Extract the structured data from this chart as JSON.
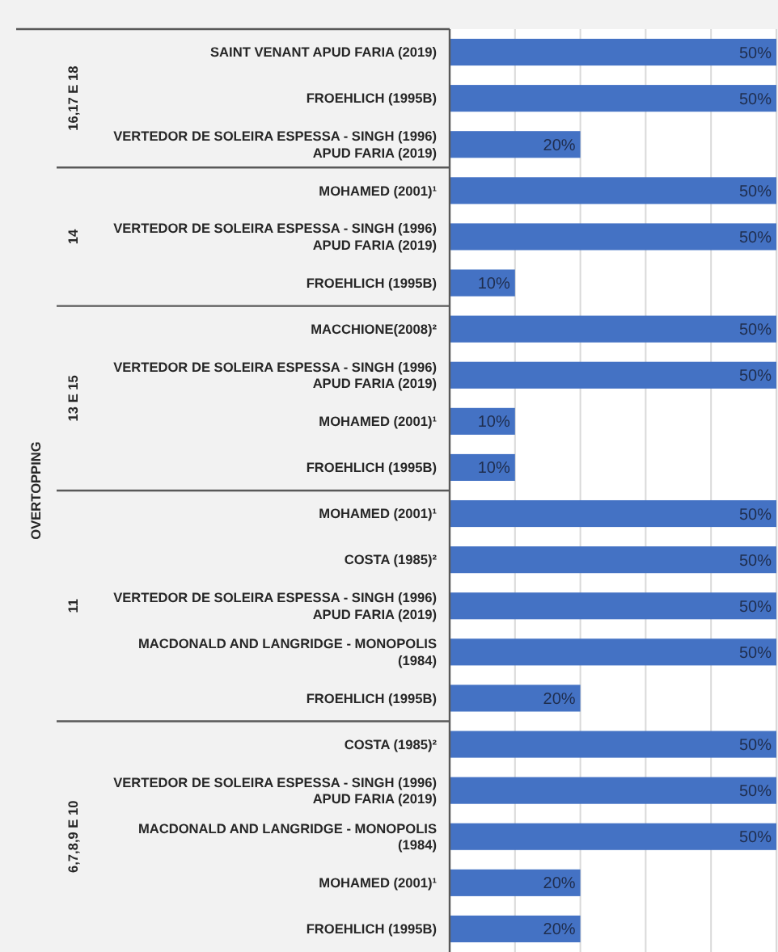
{
  "chart_data": {
    "type": "bar",
    "orientation": "horizontal",
    "categories": [
      "SAINT VENANT APUD FARIA (2019)",
      "FROEHLICH (1995B)",
      "VERTEDOR DE SOLEIRA ESPESSA - SINGH (1996) APUD FARIA (2019)",
      "MOHAMED (2001)¹",
      "VERTEDOR DE SOLEIRA ESPESSA - SINGH (1996) APUD FARIA (2019)",
      "FROEHLICH (1995B)",
      "MACCHIONE(2008)²",
      "VERTEDOR DE SOLEIRA ESPESSA - SINGH (1996) APUD FARIA (2019)",
      "MOHAMED (2001)¹",
      "FROEHLICH (1995B)",
      "MOHAMED (2001)¹",
      "COSTA (1985)²",
      "VERTEDOR DE SOLEIRA ESPESSA - SINGH (1996) APUD FARIA (2019)",
      "MACDONALD AND LANGRIDGE - MONOPOLIS (1984)",
      "FROEHLICH (1995B)",
      "COSTA (1985)²",
      "VERTEDOR DE SOLEIRA ESPESSA - SINGH (1996) APUD FARIA (2019)",
      "MACDONALD AND LANGRIDGE - MONOPOLIS (1984)",
      "MOHAMED (2001)¹",
      "FROEHLICH (1995B)"
    ],
    "values": [
      50,
      50,
      20,
      50,
      50,
      10,
      50,
      50,
      10,
      10,
      50,
      50,
      50,
      50,
      20,
      50,
      50,
      50,
      20,
      20
    ],
    "value_labels": [
      "50%",
      "50%",
      "20%",
      "50%",
      "50%",
      "10%",
      "50%",
      "50%",
      "10%",
      "10%",
      "50%",
      "50%",
      "50%",
      "50%",
      "20%",
      "50%",
      "50%",
      "50%",
      "20%",
      "20%"
    ],
    "color": "#4472c4",
    "xlim": [
      0,
      50
    ],
    "xticks": [
      {
        "value": 0,
        "label": null
      },
      {
        "value": 10,
        "label": null
      },
      {
        "value": 20,
        "label": null
      },
      {
        "value": 30,
        "label": null
      },
      {
        "value": 40,
        "label": null
      },
      {
        "value": 50,
        "label": null
      }
    ],
    "tick_labels": "y",
    "grid": "x",
    "annotations": [
      "OVERTOPPING",
      "16,17 E 18",
      "14",
      "13 E 15",
      "11",
      "6,7,8,9 E 10"
    ]
  }
}
